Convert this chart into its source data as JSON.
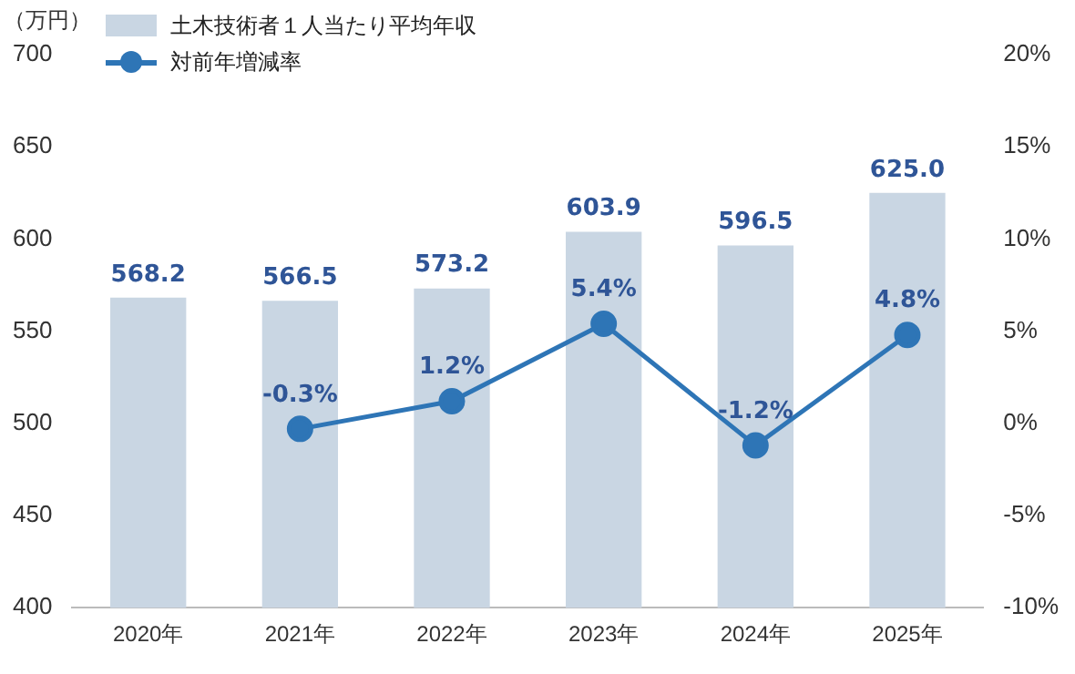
{
  "chart_data": {
    "type": "bar",
    "ylabel": "（万円）",
    "categories": [
      "2020年",
      "2021年",
      "2022年",
      "2023年",
      "2024年",
      "2025年"
    ],
    "series": [
      {
        "name": "土木技術者１人当たり平均年収",
        "color": "#c9d6e3",
        "values": [
          568.2,
          566.5,
          573.2,
          603.9,
          596.5,
          625.0
        ],
        "value_labels": [
          "568.2",
          "566.5",
          "573.2",
          "603.9",
          "596.5",
          "625.0"
        ]
      },
      {
        "name": "対前年増減率",
        "type": "line",
        "axis": "y2",
        "color": "#2e75b6",
        "values": [
          null,
          -0.3,
          1.2,
          5.4,
          -1.2,
          4.8
        ],
        "value_labels": [
          null,
          "-0.3%",
          "1.2%",
          "5.4%",
          "-1.2%",
          "4.8%"
        ]
      }
    ],
    "ylim": [
      400,
      700
    ],
    "yticks": [
      400,
      450,
      500,
      550,
      600,
      650,
      700
    ],
    "y2lim": [
      -10,
      20
    ],
    "y2ticks": [
      {
        "value": -10,
        "label": "-10%"
      },
      {
        "value": -5,
        "label": "-5%"
      },
      {
        "value": 0,
        "label": "0%"
      },
      {
        "value": 5,
        "label": "5%"
      },
      {
        "value": 10,
        "label": "10%"
      },
      {
        "value": 15,
        "label": "15%"
      },
      {
        "value": 20,
        "label": "20%"
      }
    ],
    "legend": "top left",
    "grid": false,
    "marker": "circle",
    "line_style": "solid"
  }
}
